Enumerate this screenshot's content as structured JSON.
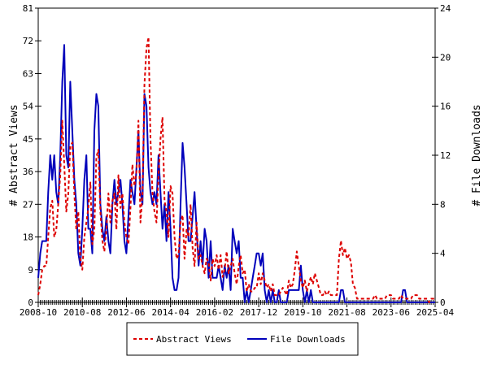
{
  "chart_data": {
    "type": "line",
    "title": "",
    "x_range": [
      "2008-10",
      "2025-04"
    ],
    "x_frequency": "monthly",
    "x_ticks": [
      "2008-10",
      "2010-08",
      "2012-06",
      "2014-04",
      "2016-02",
      "2017-12",
      "2019-10",
      "2021-08",
      "2023-06",
      "2025-04"
    ],
    "ylabel_left": "# Abstract Views",
    "ylabel_right": "# File Downloads",
    "ylim_left": [
      0,
      81
    ],
    "yticks_left": [
      0,
      9,
      18,
      27,
      36,
      45,
      54,
      63,
      72,
      81
    ],
    "ylim_right": [
      0,
      24
    ],
    "yticks_right": [
      0,
      4,
      8,
      12,
      16,
      20,
      24
    ],
    "grid": false,
    "legend_position": "bottom",
    "series": [
      {
        "name": "Abstract Views",
        "axis": "left",
        "color": "#dd0000",
        "style": "dashed",
        "values": [
          2,
          5,
          9,
          10,
          10,
          18,
          26,
          28,
          18,
          20,
          27,
          35,
          50,
          38,
          25,
          30,
          43,
          44,
          30,
          20,
          25,
          12,
          9,
          18,
          22,
          26,
          33,
          16,
          20,
          40,
          42,
          25,
          17,
          14,
          20,
          30,
          22,
          28,
          30,
          20,
          35,
          26,
          30,
          22,
          18,
          16,
          26,
          38,
          32,
          36,
          50,
          22,
          30,
          60,
          70,
          73,
          45,
          30,
          25,
          22,
          35,
          45,
          51,
          28,
          25,
          18,
          32,
          30,
          18,
          12,
          13,
          22,
          24,
          12,
          20,
          18,
          27,
          15,
          10,
          22,
          12,
          13,
          10,
          8,
          12,
          11,
          6,
          12,
          10,
          13,
          9,
          13,
          7,
          9,
          14,
          8,
          10,
          12,
          8,
          5,
          10,
          13,
          8,
          9,
          3,
          5,
          3,
          3,
          4,
          4,
          8,
          5,
          8,
          6,
          4,
          5,
          3,
          5,
          2,
          2,
          2,
          3,
          4,
          3,
          2,
          6,
          4,
          5,
          9,
          14,
          10,
          6,
          4,
          6,
          3,
          5,
          7,
          5,
          8,
          6,
          4,
          2,
          2,
          3,
          2,
          3,
          2,
          2,
          2,
          2,
          12,
          17,
          13,
          15,
          12,
          13,
          11,
          5,
          4,
          1,
          1,
          1,
          1,
          1,
          1,
          1,
          1,
          1,
          2,
          1,
          1,
          1,
          1,
          1,
          2,
          2,
          2,
          1,
          1,
          1,
          1,
          2,
          1,
          1,
          1,
          1,
          1,
          2,
          2,
          2,
          1,
          1,
          1,
          1,
          1,
          0,
          1,
          1,
          1
        ]
      },
      {
        "name": "File Downloads",
        "axis": "right",
        "color": "#0000bb",
        "style": "solid",
        "values": [
          2,
          4,
          5,
          5,
          5,
          9,
          12,
          10,
          12,
          9,
          8,
          12,
          18,
          21,
          12,
          11,
          18,
          14,
          10,
          8,
          4,
          3,
          6,
          10,
          12,
          6,
          6,
          4,
          14,
          17,
          16,
          8,
          6,
          5,
          7,
          5,
          4,
          8,
          10,
          8,
          9,
          10,
          8,
          5,
          4,
          7,
          10,
          9,
          8,
          11,
          14,
          9,
          8,
          17,
          16,
          11,
          9,
          8,
          9,
          8,
          12,
          9,
          6,
          8,
          5,
          9,
          6,
          2,
          1,
          1,
          2,
          8,
          13,
          11,
          8,
          5,
          5,
          7,
          9,
          6,
          3,
          5,
          3,
          6,
          5,
          2,
          5,
          2,
          2,
          2,
          3,
          2,
          1,
          3,
          2,
          3,
          1,
          6,
          5,
          4,
          5,
          2,
          2,
          0,
          1,
          0,
          1,
          2,
          3,
          4,
          4,
          3,
          4,
          1,
          0,
          1,
          0,
          1,
          0,
          0,
          1,
          0,
          0,
          0,
          0,
          1,
          1,
          1,
          1,
          1,
          1,
          3,
          1,
          0,
          1,
          0,
          1,
          0,
          0,
          0,
          0,
          0,
          0,
          0,
          0,
          0,
          0,
          0,
          0,
          0,
          0,
          1,
          1,
          0,
          0,
          0,
          0,
          0,
          0,
          0,
          0,
          0,
          0,
          0,
          0,
          0,
          0,
          0,
          0,
          0,
          0,
          0,
          0,
          0,
          0,
          0,
          0,
          0,
          0,
          0,
          0,
          0,
          1,
          1,
          0,
          0,
          0,
          0,
          0,
          0,
          0,
          0,
          0,
          0,
          0,
          0,
          0,
          0,
          0
        ]
      }
    ]
  }
}
